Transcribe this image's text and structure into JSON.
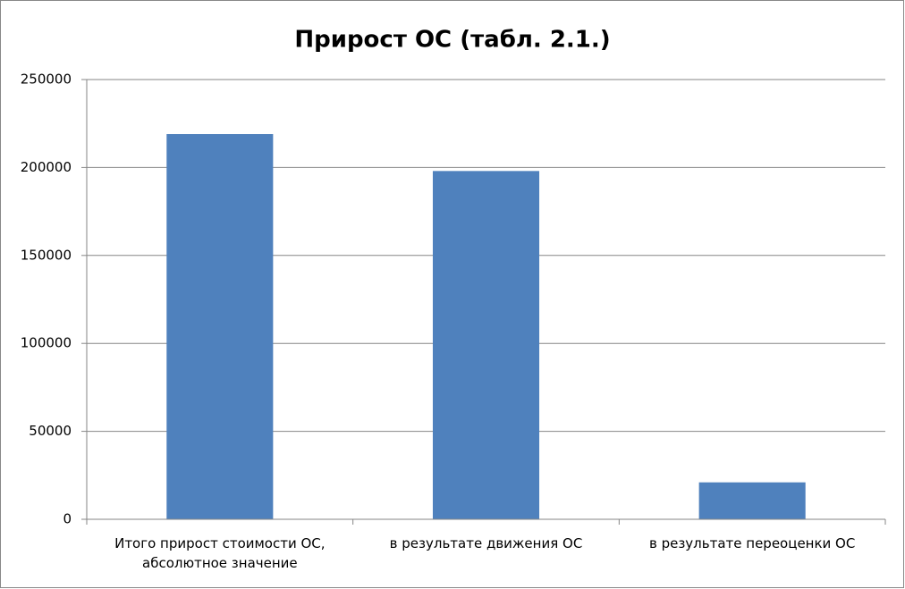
{
  "chart_data": {
    "type": "bar",
    "title": "Прирост ОС (табл. 2.1.)",
    "categories": [
      "Итого прирост стоимости ОС, абсолютное значение",
      "в результате движения ОС",
      "в результате переоценки ОС"
    ],
    "values": [
      219000,
      198000,
      21000
    ],
    "color": "#4f81bd",
    "ylim": [
      0,
      250000
    ],
    "yticks": [
      0,
      50000,
      100000,
      150000,
      200000,
      250000
    ],
    "grid": true
  }
}
